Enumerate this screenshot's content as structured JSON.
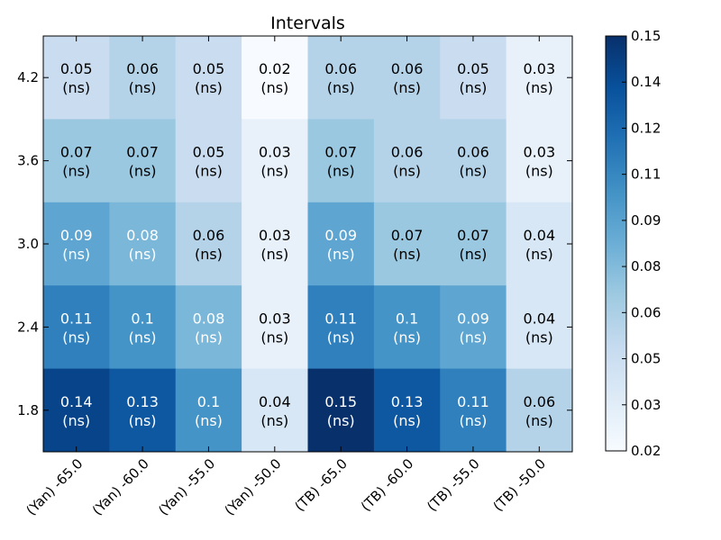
{
  "chart_data": {
    "type": "heatmap",
    "title": "Intervals",
    "x_categories": [
      "(Yan) -65.0",
      "(Yan) -60.0",
      "(Yan) -55.0",
      "(Yan) -50.0",
      "(TB) -65.0",
      "(TB) -60.0",
      "(TB) -55.0",
      "(TB) -50.0"
    ],
    "y_categories": [
      "4.2",
      "3.6",
      "3.0",
      "2.4",
      "1.8"
    ],
    "values": [
      [
        0.05,
        0.06,
        0.05,
        0.02,
        0.06,
        0.06,
        0.05,
        0.03
      ],
      [
        0.07,
        0.07,
        0.05,
        0.03,
        0.07,
        0.06,
        0.06,
        0.03
      ],
      [
        0.09,
        0.08,
        0.06,
        0.03,
        0.09,
        0.07,
        0.07,
        0.04
      ],
      [
        0.11,
        0.1,
        0.08,
        0.03,
        0.11,
        0.1,
        0.09,
        0.04
      ],
      [
        0.14,
        0.13,
        0.1,
        0.04,
        0.15,
        0.13,
        0.11,
        0.06
      ]
    ],
    "labels": [
      [
        "0.05",
        "0.06",
        "0.05",
        "0.02",
        "0.06",
        "0.06",
        "0.05",
        "0.03"
      ],
      [
        "0.07",
        "0.07",
        "0.05",
        "0.03",
        "0.07",
        "0.06",
        "0.06",
        "0.03"
      ],
      [
        "0.09",
        "0.08",
        "0.06",
        "0.03",
        "0.09",
        "0.07",
        "0.07",
        "0.04"
      ],
      [
        "0.11",
        "0.1",
        "0.08",
        "0.03",
        "0.11",
        "0.1",
        "0.09",
        "0.04"
      ],
      [
        "0.14",
        "0.13",
        "0.1",
        "0.04",
        "0.15",
        "0.13",
        "0.11",
        "0.06"
      ]
    ],
    "unit_label": "(ns)",
    "colorbar": {
      "ticks": [
        "0.02",
        "0.03",
        "0.05",
        "0.06",
        "0.08",
        "0.09",
        "0.11",
        "0.12",
        "0.14",
        "0.15"
      ],
      "range": [
        0.02,
        0.15
      ],
      "colormap": "Blues",
      "colors": [
        "#f7fbff",
        "#deebf7",
        "#c6dbef",
        "#9ecae1",
        "#6baed6",
        "#4292c6",
        "#2171b5",
        "#08519c",
        "#08306b"
      ]
    },
    "grid": false
  }
}
